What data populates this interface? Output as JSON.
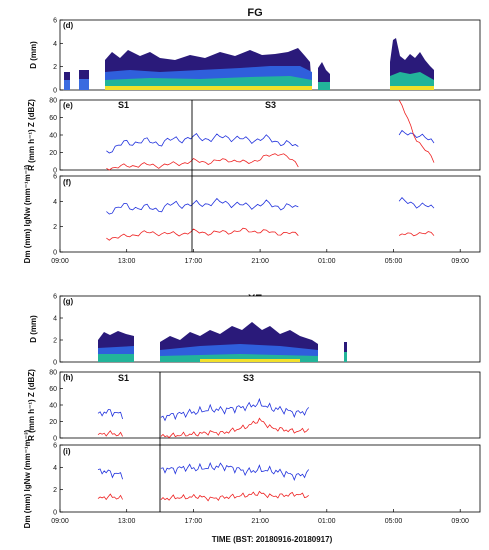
{
  "chart_data": {
    "type": "multi-panel time series",
    "xlabel": "TIME (BST: 20180916-20180917)",
    "x_ticks": [
      "09:00",
      "13:00",
      "17:00",
      "21:00",
      "01:00",
      "05:00",
      "09:00"
    ],
    "sites": [
      {
        "name": "FG",
        "segments": [
          "S1",
          "S3"
        ],
        "divider_time": "17:00",
        "panels": [
          {
            "label": "(d)",
            "type": "area",
            "ylabel": "D (mm)",
            "yticks": [
              "0",
              "2",
              "4",
              "6"
            ],
            "ylim": [
              0,
              6
            ],
            "rain_periods": [
              [
                "09:30",
                "10:45"
              ],
              [
                "11:15",
                "20:30"
              ],
              [
                "20:45",
                "00:45"
              ],
              [
                "05:00",
                "07:45"
              ]
            ],
            "dmax_values": [
              1.6,
              1.8,
              3.0,
              3.8,
              3.2,
              3.6,
              2.4,
              3.0,
              3.4,
              4.5,
              2.5
            ]
          },
          {
            "label": "(e)",
            "type": "line",
            "ylabel": "R (mm h⁻¹) Z (dBZ)",
            "yticks": [
              "0",
              "20",
              "40",
              "60",
              "80"
            ],
            "ylim": [
              0,
              80
            ],
            "series": [
              {
                "name": "Z",
                "color": "#2233dd",
                "values": [
                  17,
                  22,
                  30,
                  33,
                  31,
                  35,
                  37,
                  36,
                  38,
                  34,
                  36,
                  32,
                  26,
                  27,
                  40,
                  42,
                  30
                ]
              },
              {
                "name": "R",
                "color": "#ee2222",
                "values": [
                  1,
                  2,
                  4,
                  6,
                  5,
                  7,
                  10,
                  9,
                  12,
                  8,
                  14,
                  20,
                  5,
                  2,
                  80,
                  35,
                  10
                ]
              }
            ]
          },
          {
            "label": "(f)",
            "type": "line",
            "ylabel": "Dm (mm) lgNw (mm⁻¹m⁻³)",
            "yticks": [
              "0",
              "2",
              "4",
              "6"
            ],
            "ylim": [
              0,
              6
            ],
            "series": [
              {
                "name": "Dm",
                "color": "#2233dd",
                "values": [
                  3.3,
                  3.2,
                  3.6,
                  3.5,
                  3.4,
                  3.8,
                  3.7,
                  3.9,
                  3.9,
                  3.6,
                  3.8,
                  3.6,
                  3.5,
                  3.7,
                  4.0,
                  3.8,
                  3.4
                ]
              },
              {
                "name": "lgNw",
                "color": "#ee2222",
                "values": [
                  1.0,
                  1.1,
                  1.2,
                  1.5,
                  1.5,
                  1.4,
                  1.6,
                  1.5,
                  1.6,
                  1.7,
                  1.6,
                  1.5,
                  1.4,
                  1.2,
                  1.3,
                  1.5,
                  1.4
                ]
              }
            ]
          }
        ]
      },
      {
        "name": "XF",
        "segments": [
          "S1",
          "S3"
        ],
        "divider_time": "15:00",
        "panels": [
          {
            "label": "(g)",
            "type": "area",
            "ylabel": "D (mm)",
            "yticks": [
              "0",
              "2",
              "4",
              "6"
            ],
            "ylim": [
              0,
              6
            ],
            "rain_periods": [
              [
                "11:10",
                "13:15"
              ],
              [
                "15:00",
                "20:15"
              ],
              [
                "20:15",
                "23:45"
              ],
              [
                "02:00",
                "02:15"
              ]
            ],
            "dmax_values": [
              2.8,
              2.6,
              3.0,
              3.2,
              3.0,
              3.6,
              4.2,
              3.8,
              3.4,
              3.0,
              2.2
            ]
          },
          {
            "label": "(h)",
            "type": "line",
            "ylabel": "R (mm h⁻¹) Z (dBZ)",
            "yticks": [
              "0",
              "20",
              "40",
              "60",
              "80"
            ],
            "ylim": [
              0,
              80
            ],
            "series": [
              {
                "name": "Z",
                "color": "#2233dd",
                "values": [
                  30,
                  32,
                  28,
                  25,
                  28,
                  30,
                  32,
                  35,
                  34,
                  36,
                  38,
                  42,
                  36,
                  34,
                  30,
                  33,
                  26
                ]
              },
              {
                "name": "R",
                "color": "#ee2222",
                "values": [
                  4,
                  6,
                  3,
                  2,
                  3,
                  4,
                  5,
                  7,
                  6,
                  10,
                  14,
                  22,
                  12,
                  10,
                  8,
                  10,
                  8
                ]
              }
            ]
          },
          {
            "label": "(i)",
            "type": "line",
            "ylabel": "Dm (mm) lgNw (mm⁻¹m⁻³)",
            "yticks": [
              "0",
              "2",
              "4",
              "6"
            ],
            "ylim": [
              0,
              6
            ],
            "series": [
              {
                "name": "Dm",
                "color": "#2233dd",
                "values": [
                  3.8,
                  3.5,
                  3.3,
                  3.9,
                  3.8,
                  4.0,
                  3.9,
                  4.0,
                  4.1,
                  3.9,
                  3.6,
                  3.8,
                  3.7,
                  3.5,
                  3.2,
                  3.5,
                  3.8
                ]
              },
              {
                "name": "lgNw",
                "color": "#ee2222",
                "values": [
                  1.2,
                  1.4,
                  1.2,
                  1.1,
                  1.3,
                  1.3,
                  1.4,
                  1.2,
                  1.3,
                  1.4,
                  1.5,
                  1.7,
                  1.4,
                  1.5,
                  1.6,
                  1.4,
                  1.0
                ]
              }
            ]
          }
        ]
      }
    ]
  }
}
